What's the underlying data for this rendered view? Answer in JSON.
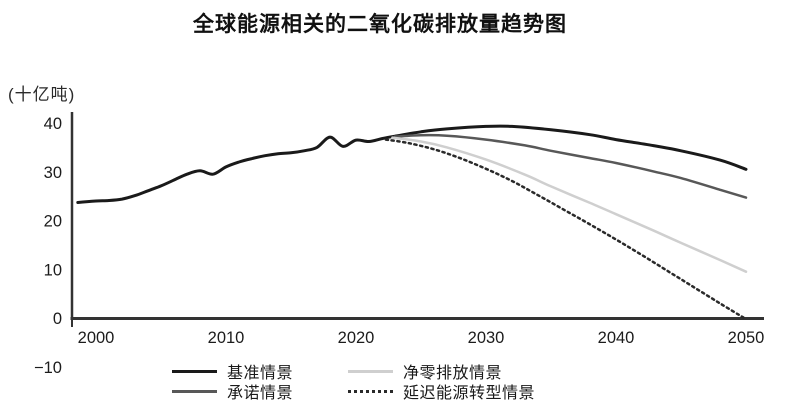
{
  "chart_data": {
    "type": "line",
    "title": "全球能源相关的二氧化碳排放量趋势图",
    "ylabel": "(十亿吨)",
    "xlabel": "",
    "xlim": [
      1998.5,
      2051
    ],
    "ylim": [
      -10,
      40
    ],
    "grid": false,
    "legend_position": "bottom",
    "x_ticks": [
      {
        "label": "2000",
        "value": 2000
      },
      {
        "label": "2010",
        "value": 2010
      },
      {
        "label": "2020",
        "value": 2020
      },
      {
        "label": "2030",
        "value": 2030
      },
      {
        "label": "2040",
        "value": 2040
      },
      {
        "label": "2050",
        "value": 2050
      }
    ],
    "y_ticks": [
      {
        "label": "40",
        "value": 40
      },
      {
        "label": "30",
        "value": 30
      },
      {
        "label": "20",
        "value": 20
      },
      {
        "label": "10",
        "value": 10
      },
      {
        "label": "0",
        "value": 0
      },
      {
        "label": "−10",
        "value": -10
      }
    ],
    "series": [
      {
        "name": "基准情景",
        "color": "#1a1a1a",
        "line_style": "solid",
        "line_width": 3,
        "points": [
          [
            1998.6,
            23.7
          ],
          [
            2000,
            24.0
          ],
          [
            2001,
            24.1
          ],
          [
            2002,
            24.4
          ],
          [
            2003,
            25.1
          ],
          [
            2004,
            26.1
          ],
          [
            2005,
            27.1
          ],
          [
            2006,
            28.3
          ],
          [
            2007,
            29.5
          ],
          [
            2008,
            30.2
          ],
          [
            2009,
            29.5
          ],
          [
            2010,
            31.0
          ],
          [
            2011,
            32.0
          ],
          [
            2012,
            32.7
          ],
          [
            2013,
            33.3
          ],
          [
            2014,
            33.7
          ],
          [
            2015,
            33.9
          ],
          [
            2016,
            34.3
          ],
          [
            2017,
            35.0
          ],
          [
            2018,
            37.1
          ],
          [
            2019,
            35.2
          ],
          [
            2020,
            36.5
          ],
          [
            2021,
            36.2
          ],
          [
            2022,
            36.8
          ],
          [
            2023,
            37.3
          ],
          [
            2025,
            38.2
          ],
          [
            2027,
            38.8
          ],
          [
            2030,
            39.3
          ],
          [
            2032,
            39.3
          ],
          [
            2035,
            38.6
          ],
          [
            2038,
            37.6
          ],
          [
            2040,
            36.6
          ],
          [
            2043,
            35.3
          ],
          [
            2045,
            34.3
          ],
          [
            2048,
            32.4
          ],
          [
            2050,
            30.5
          ]
        ]
      },
      {
        "name": "承诺情景",
        "color": "#585858",
        "line_style": "solid",
        "line_width": 2.5,
        "points": [
          [
            2023,
            37.2
          ],
          [
            2025,
            37.5
          ],
          [
            2027,
            37.4
          ],
          [
            2030,
            36.6
          ],
          [
            2033,
            35.4
          ],
          [
            2035,
            34.3
          ],
          [
            2038,
            32.8
          ],
          [
            2040,
            31.8
          ],
          [
            2043,
            30.0
          ],
          [
            2045,
            28.7
          ],
          [
            2048,
            26.3
          ],
          [
            2050,
            24.7
          ]
        ]
      },
      {
        "name": "净零排放情景",
        "color": "#cfcfcf",
        "line_style": "solid",
        "line_width": 2.5,
        "points": [
          [
            2022.8,
            37.0
          ],
          [
            2025,
            36.2
          ],
          [
            2027,
            35.0
          ],
          [
            2030,
            32.5
          ],
          [
            2033,
            29.4
          ],
          [
            2035,
            27.0
          ],
          [
            2038,
            23.6
          ],
          [
            2040,
            21.3
          ],
          [
            2043,
            17.8
          ],
          [
            2045,
            15.4
          ],
          [
            2048,
            11.9
          ],
          [
            2050,
            9.5
          ]
        ]
      },
      {
        "name": "延迟能源转型情景",
        "color": "#2a2a2a",
        "line_style": "dotted",
        "line_width": 2.5,
        "points": [
          [
            2022.3,
            36.6
          ],
          [
            2024,
            35.9
          ],
          [
            2026,
            34.6
          ],
          [
            2028,
            32.8
          ],
          [
            2030,
            30.6
          ],
          [
            2032,
            28.1
          ],
          [
            2034,
            25.2
          ],
          [
            2036,
            22.2
          ],
          [
            2038,
            19.2
          ],
          [
            2040,
            16.1
          ],
          [
            2042,
            12.9
          ],
          [
            2044,
            9.6
          ],
          [
            2046,
            6.3
          ],
          [
            2048,
            3.0
          ],
          [
            2049.8,
            0.1
          ]
        ]
      }
    ]
  }
}
